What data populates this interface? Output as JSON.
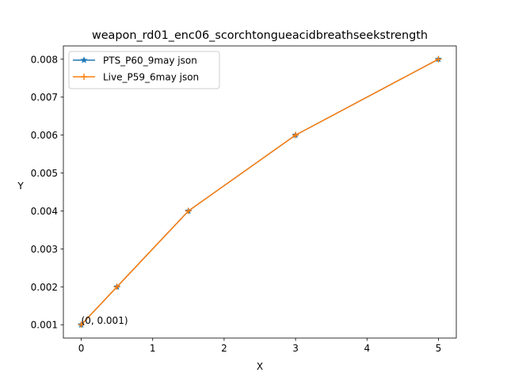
{
  "chart_data": {
    "type": "line",
    "title": "weapon_rd01_enc06_scorchtongueacidbreathseekstrength",
    "xlabel": "X",
    "ylabel": "Y",
    "xlim": [
      -0.25,
      5.25
    ],
    "ylim": [
      0.00065,
      0.00835
    ],
    "xticks": [
      0,
      1,
      2,
      3,
      4,
      5
    ],
    "xtick_labels": [
      "0",
      "1",
      "2",
      "3",
      "4",
      "5"
    ],
    "yticks": [
      0.001,
      0.002,
      0.003,
      0.004,
      0.005,
      0.006,
      0.007,
      0.008
    ],
    "ytick_labels": [
      "0.001",
      "0.002",
      "0.003",
      "0.004",
      "0.005",
      "0.006",
      "0.007",
      "0.008"
    ],
    "grid": false,
    "legend_position": "upper-left",
    "series": [
      {
        "name": "PTS_P60_9may json",
        "color": "#1f77b4",
        "marker": "star",
        "x": [
          0,
          0.5,
          1.5,
          3,
          5
        ],
        "y": [
          0.001,
          0.002,
          0.004,
          0.006,
          0.008
        ]
      },
      {
        "name": "Live_P59_6may json",
        "color": "#ff7f0e",
        "marker": "plus",
        "x": [
          0,
          0.5,
          1.5,
          3,
          5
        ],
        "y": [
          0.001,
          0.002,
          0.004,
          0.006,
          0.008
        ]
      }
    ],
    "annotations": [
      {
        "text": "(0, 0.001)",
        "x": 0,
        "y": 0.001
      }
    ]
  }
}
